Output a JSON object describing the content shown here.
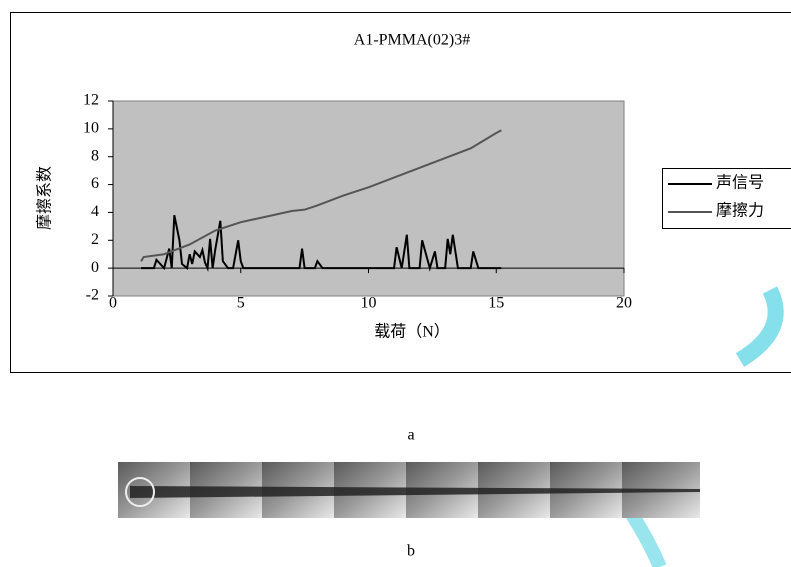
{
  "chart_data": {
    "type": "line",
    "title": "A1-PMMA(02)3#",
    "x_label": "载荷（N）",
    "y_label": "摩擦系数",
    "xlim": [
      0,
      20
    ],
    "xticks": [
      0,
      5,
      10,
      15,
      20
    ],
    "ylim": [
      -2,
      12
    ],
    "yticks": [
      -2,
      0,
      2,
      4,
      6,
      8,
      10,
      12
    ],
    "plot_background": "#c0c0c0",
    "legend": "right",
    "series": [
      {
        "name": "声信号",
        "color": "#000000",
        "x": [
          1.1,
          1.6,
          1.7,
          2.0,
          2.2,
          2.3,
          2.4,
          2.6,
          2.7,
          2.9,
          3.0,
          3.1,
          3.2,
          3.4,
          3.5,
          3.6,
          3.7,
          3.8,
          3.9,
          4.0,
          4.2,
          4.3,
          4.5,
          4.7,
          4.9,
          5.0,
          5.1,
          7.3,
          7.4,
          7.5,
          7.9,
          8.0,
          8.2,
          11.0,
          11.1,
          11.3,
          11.5,
          11.6,
          12.0,
          12.1,
          12.4,
          12.6,
          12.7,
          13.0,
          13.1,
          13.2,
          13.3,
          13.5,
          14.0,
          14.1,
          14.3,
          15.2
        ],
        "values": [
          0,
          0,
          0.6,
          0,
          1.4,
          0,
          3.8,
          2.0,
          0.3,
          0,
          1.0,
          0.3,
          1.2,
          0.8,
          1.3,
          0.4,
          0,
          2.1,
          0,
          1.3,
          3.4,
          0.5,
          0,
          0,
          2.0,
          0.5,
          0,
          0,
          1.4,
          0,
          0,
          0.5,
          0,
          0,
          1.5,
          0,
          2.4,
          0,
          0,
          2.0,
          0,
          1.2,
          0,
          0,
          2.1,
          1.0,
          2.4,
          0,
          0,
          1.2,
          0,
          0
        ]
      },
      {
        "name": "摩擦力",
        "color": "#555555",
        "x": [
          1.1,
          1.2,
          2.0,
          3.0,
          4.0,
          5.0,
          6.0,
          7.0,
          7.5,
          8.0,
          9.0,
          10.0,
          11.0,
          12.0,
          13.0,
          14.0,
          15.0,
          15.2
        ],
        "values": [
          0.5,
          0.8,
          1.0,
          1.7,
          2.7,
          3.3,
          3.7,
          4.1,
          4.2,
          4.5,
          5.2,
          5.8,
          6.5,
          7.2,
          7.9,
          8.6,
          9.7,
          9.9
        ]
      }
    ]
  },
  "captions": [
    "a",
    "b"
  ]
}
